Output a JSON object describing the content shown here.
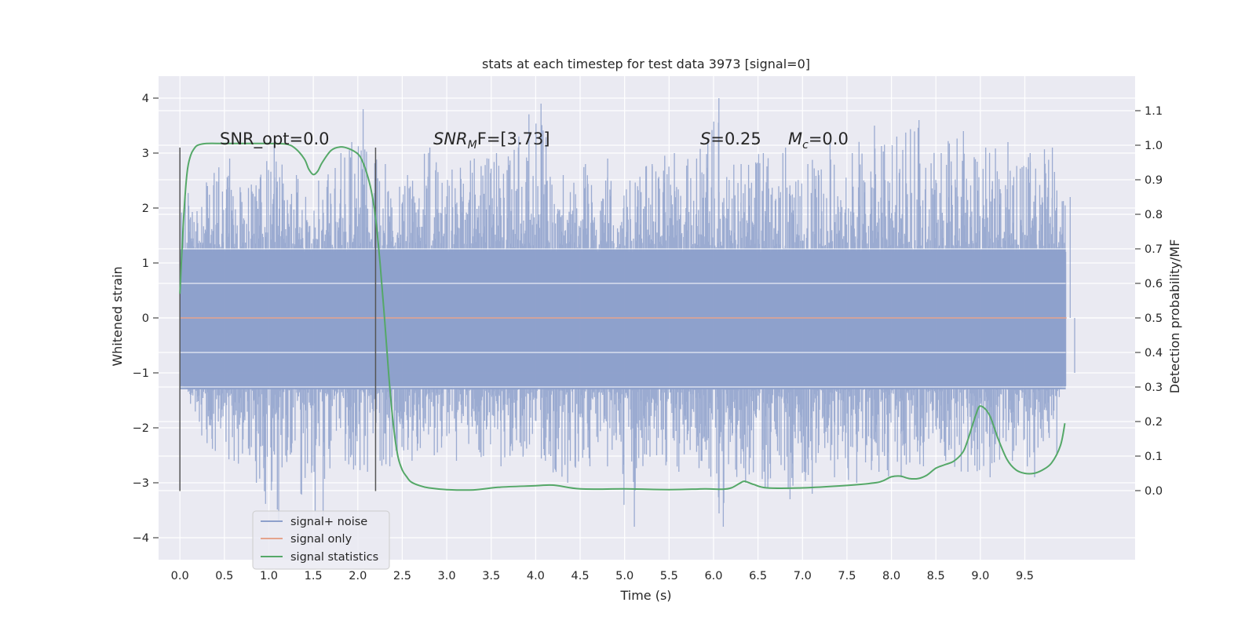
{
  "chart_data": {
    "type": "line",
    "title": "stats at each timestep for test data 3973 [signal=0]",
    "xlabel": "Time (s)",
    "ylabel": "Whitened strain",
    "y2label": "Detection probability/MF",
    "xlim": [
      -0.24,
      10.74
    ],
    "ylim": [
      -4.4,
      4.4
    ],
    "y2lim": [
      -0.2,
      1.2
    ],
    "x_ticks": [
      "0.0",
      "0.5",
      "1.0",
      "1.5",
      "2.0",
      "2.5",
      "3.0",
      "3.5",
      "4.0",
      "4.5",
      "5.0",
      "5.5",
      "6.0",
      "6.5",
      "7.0",
      "7.5",
      "8.0",
      "8.5",
      "9.0",
      "9.5"
    ],
    "y_ticks": [
      4,
      3,
      2,
      1,
      0,
      -1,
      -2,
      -3,
      -4
    ],
    "y_tick_labels": [
      "4",
      "3",
      "2",
      "1",
      "0",
      "−1",
      "−2",
      "−3",
      "−4"
    ],
    "y2_ticks": [
      1.1,
      1.0,
      0.9,
      0.8,
      0.7,
      0.6,
      0.5,
      0.4,
      0.3,
      0.2,
      0.1,
      0.0
    ],
    "y2_tick_labels": [
      "1.1",
      "1.0",
      "0.9",
      "0.8",
      "0.7",
      "0.6",
      "0.5",
      "0.4",
      "0.3",
      "0.2",
      "0.1",
      "0.0"
    ],
    "grid": true,
    "legend_position": "lower-left",
    "vlines": [
      0.0,
      2.2
    ],
    "vline_range": [
      -3.15,
      3.1
    ],
    "annotations": {
      "snr_opt": "SNR_opt=0.0",
      "snr_mf_label": "SNR",
      "snr_mf_sub": "M",
      "snr_mf_rest": "F=[3.73]",
      "s_label": "S",
      "s_rest": "=0.25",
      "mc_label": "M",
      "mc_sub": "c",
      "mc_rest": "=0.0"
    },
    "series": [
      {
        "name": "signal+ noise",
        "color": "#8da0cb",
        "note": "whitened strain noise, roughly within [-1.3, 1.3] with spikes up to about ±4",
        "peaks_x": [
          0.0,
          0.25,
          0.5,
          0.75,
          1.0,
          1.25,
          1.5,
          1.75,
          2.0,
          2.25,
          2.5,
          2.75,
          3.0,
          3.25,
          3.5,
          3.75,
          4.0,
          4.25,
          4.5,
          4.75,
          5.0,
          5.25,
          5.5,
          5.75,
          6.0,
          6.25,
          6.5,
          6.75,
          7.0,
          7.25,
          7.5,
          7.75,
          8.0,
          8.25,
          8.5,
          8.75,
          9.0,
          9.25,
          9.5,
          9.75,
          9.95
        ],
        "peaks_max": [
          2.2,
          2.4,
          2.9,
          2.3,
          3.2,
          2.6,
          2.5,
          3.0,
          3.8,
          2.8,
          2.6,
          3.1,
          2.7,
          2.9,
          3.0,
          3.3,
          3.9,
          2.6,
          2.8,
          2.9,
          2.5,
          2.8,
          3.0,
          2.9,
          4.0,
          2.8,
          3.0,
          3.1,
          2.8,
          3.2,
          3.0,
          3.5,
          3.3,
          3.6,
          3.0,
          3.4,
          3.1,
          3.2,
          3.0,
          3.1,
          2.2
        ],
        "peaks_min": [
          -1.0,
          -2.2,
          -2.6,
          -3.0,
          -3.7,
          -3.2,
          -3.6,
          -2.6,
          -2.8,
          -2.7,
          -2.6,
          -2.5,
          -2.6,
          -2.4,
          -2.7,
          -2.5,
          -2.6,
          -3.0,
          -2.7,
          -2.4,
          -3.8,
          -2.5,
          -2.8,
          -2.6,
          -3.8,
          -3.0,
          -3.1,
          -3.3,
          -3.2,
          -2.9,
          -3.0,
          -2.8,
          -2.9,
          -2.7,
          -2.6,
          -2.8,
          -2.9,
          -2.6,
          -2.9,
          -2.5,
          -1.0
        ]
      },
      {
        "name": "signal only",
        "color": "#e5a48d",
        "x": [
          0.0,
          9.97
        ],
        "y": [
          0.0,
          0.0
        ]
      },
      {
        "name": "signal statistics",
        "color": "#55a868",
        "axis": "right",
        "x": [
          0.0,
          0.04,
          0.08,
          0.12,
          0.16,
          0.2,
          0.3,
          0.5,
          0.8,
          1.0,
          1.2,
          1.3,
          1.4,
          1.45,
          1.5,
          1.55,
          1.6,
          1.7,
          1.8,
          1.9,
          2.0,
          2.05,
          2.1,
          2.15,
          2.2,
          2.25,
          2.3,
          2.35,
          2.4,
          2.45,
          2.5,
          2.55,
          2.6,
          2.7,
          2.8,
          3.0,
          3.3,
          3.6,
          4.0,
          4.2,
          4.5,
          5.0,
          5.5,
          5.9,
          6.1,
          6.2,
          6.3,
          6.35,
          6.45,
          6.6,
          7.0,
          7.5,
          7.8,
          7.9,
          8.0,
          8.1,
          8.2,
          8.3,
          8.4,
          8.5,
          8.6,
          8.7,
          8.8,
          8.85,
          8.9,
          8.95,
          9.0,
          9.1,
          9.2,
          9.3,
          9.4,
          9.5,
          9.6,
          9.7,
          9.8,
          9.9,
          9.95
        ],
        "y": [
          0.57,
          0.78,
          0.92,
          0.97,
          0.99,
          1.0,
          1.005,
          1.005,
          1.005,
          1.005,
          1.003,
          0.99,
          0.96,
          0.93,
          0.915,
          0.925,
          0.95,
          0.985,
          0.995,
          0.99,
          0.975,
          0.955,
          0.92,
          0.87,
          0.79,
          0.66,
          0.5,
          0.33,
          0.19,
          0.1,
          0.06,
          0.04,
          0.025,
          0.014,
          0.008,
          0.003,
          0.002,
          0.01,
          0.014,
          0.016,
          0.005,
          0.005,
          0.003,
          0.005,
          0.004,
          0.008,
          0.022,
          0.027,
          0.018,
          0.008,
          0.008,
          0.015,
          0.022,
          0.028,
          0.04,
          0.042,
          0.035,
          0.035,
          0.045,
          0.065,
          0.075,
          0.085,
          0.11,
          0.14,
          0.18,
          0.22,
          0.245,
          0.22,
          0.15,
          0.09,
          0.06,
          0.05,
          0.05,
          0.06,
          0.08,
          0.13,
          0.195
        ]
      }
    ]
  }
}
